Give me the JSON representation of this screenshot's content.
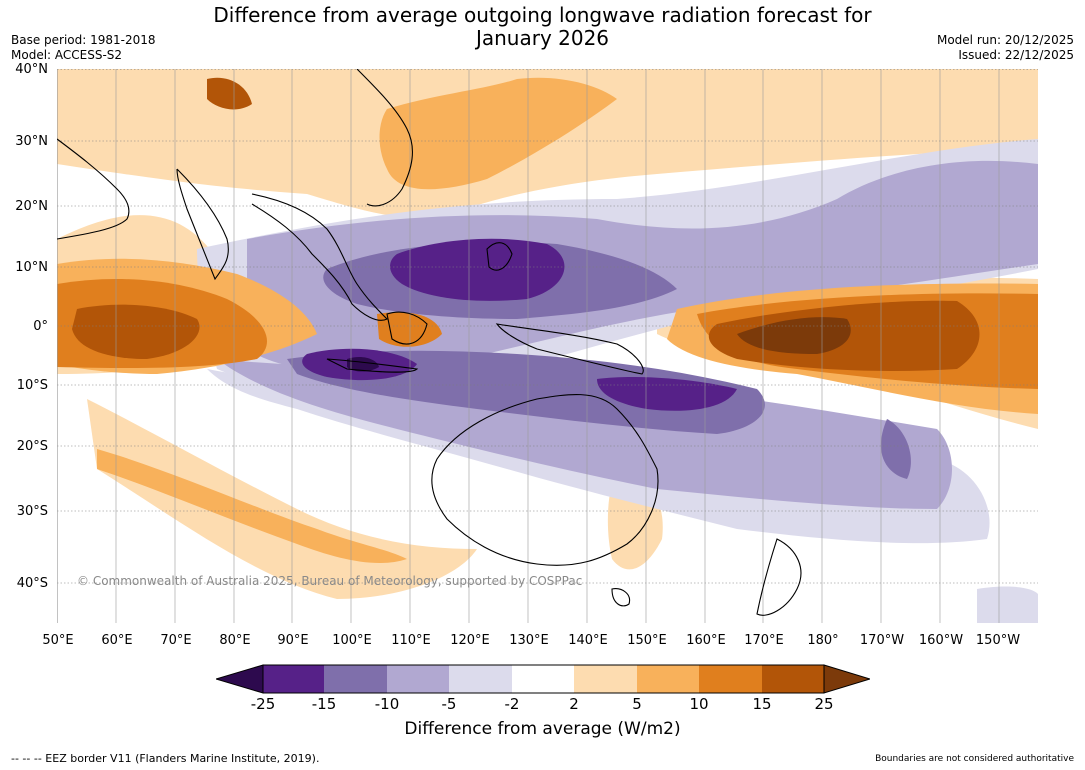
{
  "title_line1": "Difference from average outgoing longwave radiation forecast for",
  "title_line2": "January 2026",
  "meta_left": {
    "base_period": "Base period: 1981-2018",
    "model": "Model: ACCESS-S2"
  },
  "meta_right": {
    "model_run": "Model run: 20/12/2025",
    "issued": "Issued: 22/12/2025"
  },
  "lat_labels": [
    "40°N",
    "30°N",
    "20°N",
    "10°N",
    "0°",
    "10°S",
    "20°S",
    "30°S",
    "40°S"
  ],
  "lon_labels": [
    "50°E",
    "60°E",
    "70°E",
    "80°E",
    "90°E",
    "100°E",
    "110°E",
    "120°E",
    "130°E",
    "140°E",
    "150°E",
    "160°E",
    "170°E",
    "180°",
    "170°W",
    "160°W",
    "150°W"
  ],
  "watermark": "© Commonwealth of Australia 2025, Bureau of Meteorology, supported by COSPPac",
  "colorbar": {
    "labels": [
      "-25",
      "-15",
      "-10",
      "-5",
      "-2",
      "2",
      "5",
      "10",
      "15",
      "25"
    ],
    "colors": [
      "#2d0a4e",
      "#562188",
      "#7f6fab",
      "#b1a8d1",
      "#dcdbec",
      "#ffffff",
      "#fddcb0",
      "#f8b15b",
      "#e07f1e",
      "#b25508",
      "#7c3a0a"
    ],
    "title": "Difference from average (W/m2)"
  },
  "eez_note": "--  --  -- EEZ border V11 (Flanders Marine Institute, 2019).",
  "boundaries_note": "Boundaries are not considered authoritative"
}
